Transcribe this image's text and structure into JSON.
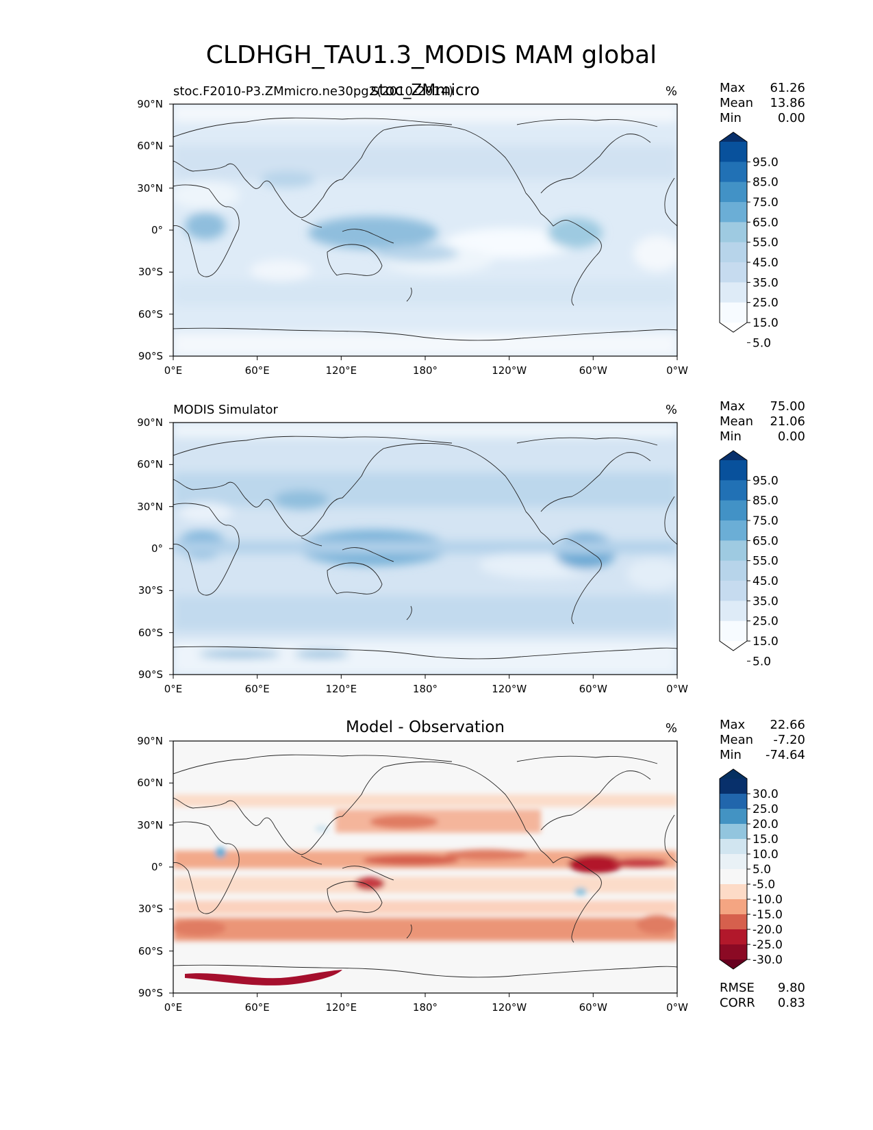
{
  "figure": {
    "title": "CLDHGH_TAU1.3_MODIS MAM global"
  },
  "chart_data": [
    {
      "type": "heatmap",
      "kind": "map",
      "panel": "test",
      "title_left": "stoc.F2010-P3.ZMmicro.ne30pg2(2010-2014)",
      "title_center": "stoc_ZMmicro",
      "units": "%",
      "stats": {
        "max_label": "Max",
        "max": "61.26",
        "mean_label": "Mean",
        "mean": "13.86",
        "min_label": "Min",
        "min": "0.00"
      },
      "colormap": "Blues",
      "colorbar_extend": "both",
      "colorbar_ticks": [
        "95.0",
        "85.0",
        "75.0",
        "65.0",
        "55.0",
        "45.0",
        "35.0",
        "25.0",
        "15.0",
        "5.0"
      ],
      "colorbar_colors": [
        "#08306b",
        "#08519c",
        "#2171b5",
        "#4292c6",
        "#6baed6",
        "#9ecae1",
        "#b7d4ea",
        "#c6dbef",
        "#deebf7",
        "#f7fbff",
        "#ffffff"
      ],
      "yticks": [
        "90°N",
        "60°N",
        "30°N",
        "0°",
        "30°S",
        "60°S",
        "90°S"
      ],
      "xticks": [
        "0°E",
        "60°E",
        "120°E",
        "180°",
        "120°W",
        "60°W",
        "0°W"
      ]
    },
    {
      "type": "heatmap",
      "kind": "map",
      "panel": "reference",
      "title_left": "MODIS Simulator",
      "title_center": "",
      "units": "%",
      "stats": {
        "max_label": "Max",
        "max": "75.00",
        "mean_label": "Mean",
        "mean": "21.06",
        "min_label": "Min",
        "min": "0.00"
      },
      "colormap": "Blues",
      "colorbar_extend": "both",
      "colorbar_ticks": [
        "95.0",
        "85.0",
        "75.0",
        "65.0",
        "55.0",
        "45.0",
        "35.0",
        "25.0",
        "15.0",
        "5.0"
      ],
      "colorbar_colors": [
        "#08306b",
        "#08519c",
        "#2171b5",
        "#4292c6",
        "#6baed6",
        "#9ecae1",
        "#b7d4ea",
        "#c6dbef",
        "#deebf7",
        "#f7fbff",
        "#ffffff"
      ],
      "yticks": [
        "90°N",
        "60°N",
        "30°N",
        "0°",
        "30°S",
        "60°S",
        "90°S"
      ],
      "xticks": [
        "0°E",
        "60°E",
        "120°E",
        "180°",
        "120°W",
        "60°W",
        "0°W"
      ]
    },
    {
      "type": "heatmap",
      "kind": "map",
      "panel": "difference",
      "title_left": "",
      "title_center": "Model - Observation",
      "units": "%",
      "stats": {
        "max_label": "Max",
        "max": "22.66",
        "mean_label": "Mean",
        "mean": "-7.20",
        "min_label": "Min",
        "min": "-74.64"
      },
      "extra_stats": {
        "rmse_label": "RMSE",
        "rmse": "9.80",
        "corr_label": "CORR",
        "corr": "0.83"
      },
      "colormap": "RdBu_r",
      "colorbar_extend": "both",
      "colorbar_ticks": [
        "30.0",
        "25.0",
        "20.0",
        "15.0",
        "10.0",
        "5.0",
        "-5.0",
        "-10.0",
        "-15.0",
        "-20.0",
        "-25.0",
        "-30.0"
      ],
      "colorbar_colors": [
        "#053061",
        "#08306b",
        "#2166ac",
        "#4393c3",
        "#92c5de",
        "#d1e5f0",
        "#e9f1f6",
        "#f7f7f7",
        "#fddbc7",
        "#f4a582",
        "#d6604d",
        "#b2182b",
        "#8b0a24",
        "#67001f"
      ],
      "yticks": [
        "90°N",
        "60°N",
        "30°N",
        "0°",
        "30°S",
        "60°S",
        "90°S"
      ],
      "xticks": [
        "0°E",
        "60°E",
        "120°E",
        "180°",
        "120°W",
        "60°W",
        "0°W"
      ]
    }
  ]
}
